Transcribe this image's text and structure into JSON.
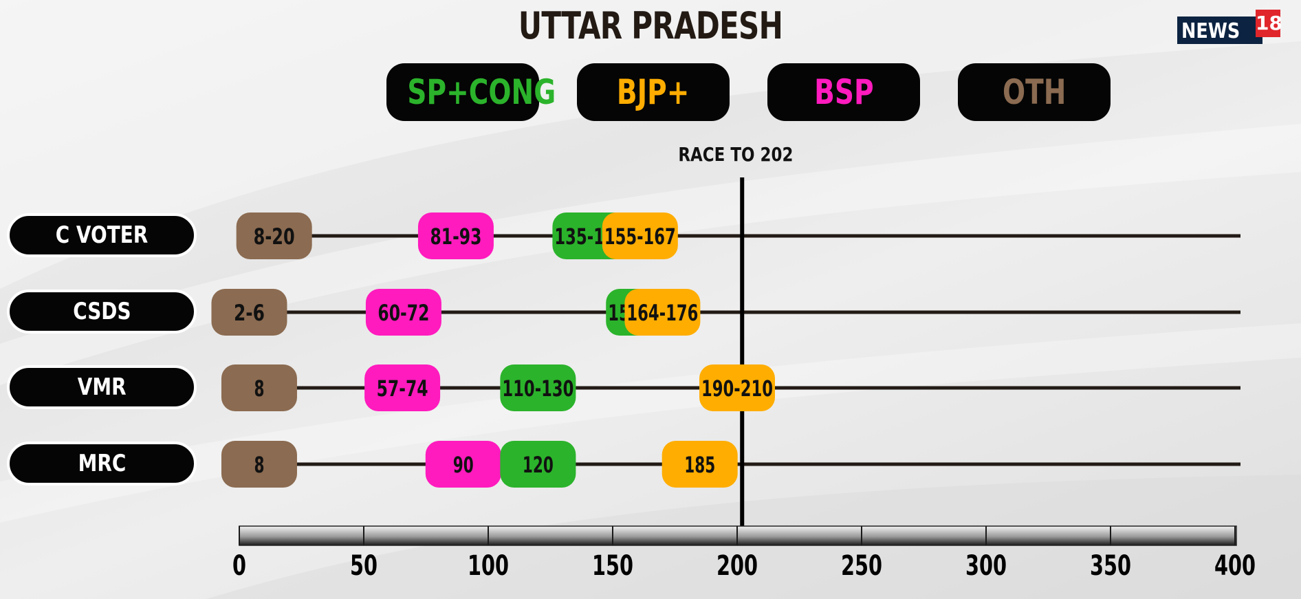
{
  "title": "UTTAR PRADESH",
  "logo": {
    "text": "NEWS",
    "number": "18"
  },
  "race_label": "RACE TO 202",
  "legend": [
    {
      "label": "SP+CONG",
      "color": "#2bb32b"
    },
    {
      "label": "BJP+",
      "color": "#ffad00"
    },
    {
      "label": "BSP",
      "color": "#ff1bbe"
    },
    {
      "label": "OTH",
      "color": "#8b6b51"
    }
  ],
  "colors": {
    "row_line": "#221a15",
    "majority_line": "#000000",
    "axis_bar_dark": "#1a1a1a",
    "axis_bar_light": "#f2f2f2"
  },
  "chart_data": {
    "type": "range",
    "title": "UTTAR PRADESH",
    "xlim": [
      0,
      400
    ],
    "xticks": [
      0,
      50,
      100,
      150,
      200,
      250,
      300,
      350,
      400
    ],
    "reference_line": {
      "value": 202,
      "label": "RACE TO 202"
    },
    "series": [
      {
        "name": "OTH",
        "color": "#8b6b51"
      },
      {
        "name": "BSP",
        "color": "#ff1bbe"
      },
      {
        "name": "SP+CONG",
        "color": "#2bb32b"
      },
      {
        "name": "BJP+",
        "color": "#ffad00"
      }
    ],
    "rows": [
      {
        "pollster": "C VOTER",
        "items": [
          {
            "party": "OTH",
            "label": "8-20",
            "low": 8,
            "high": 20
          },
          {
            "party": "BSP",
            "label": "81-93",
            "low": 81,
            "high": 93
          },
          {
            "party": "SP+CONG",
            "label": "135-147",
            "low": 135,
            "high": 147
          },
          {
            "party": "BJP+",
            "label": "155-167",
            "low": 155,
            "high": 167
          }
        ]
      },
      {
        "pollster": "CSDS",
        "items": [
          {
            "party": "OTH",
            "label": "2-6",
            "low": 2,
            "high": 6
          },
          {
            "party": "BSP",
            "label": "60-72",
            "low": 60,
            "high": 72
          },
          {
            "party": "SP+CONG",
            "label": "156-169",
            "low": 156,
            "high": 169
          },
          {
            "party": "BJP+",
            "label": "164-176",
            "low": 164,
            "high": 176
          }
        ]
      },
      {
        "pollster": "VMR",
        "items": [
          {
            "party": "OTH",
            "label": "8",
            "low": 8,
            "high": 8
          },
          {
            "party": "BSP",
            "label": "57-74",
            "low": 57,
            "high": 74
          },
          {
            "party": "SP+CONG",
            "label": "110-130",
            "low": 110,
            "high": 130
          },
          {
            "party": "BJP+",
            "label": "190-210",
            "low": 190,
            "high": 210
          }
        ]
      },
      {
        "pollster": "MRC",
        "items": [
          {
            "party": "OTH",
            "label": "8",
            "low": 8,
            "high": 8
          },
          {
            "party": "BSP",
            "label": "90",
            "low": 90,
            "high": 90
          },
          {
            "party": "SP+CONG",
            "label": "120",
            "low": 120,
            "high": 120
          },
          {
            "party": "BJP+",
            "label": "185",
            "low": 185,
            "high": 185
          }
        ]
      }
    ]
  }
}
